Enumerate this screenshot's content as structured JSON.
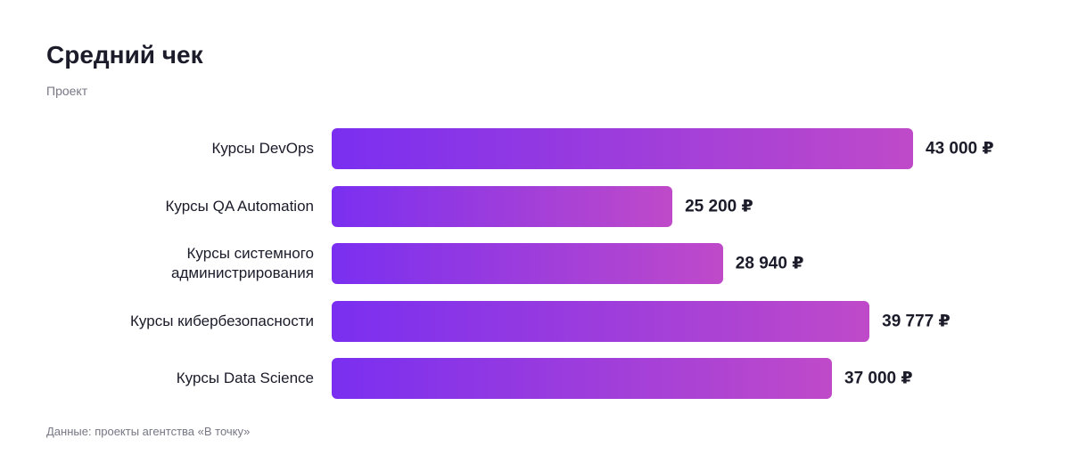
{
  "chart_data": {
    "type": "bar",
    "orientation": "horizontal",
    "title": "Средний чек",
    "subtitle": "Проект",
    "source": "Данные: проекты агентства «В точку»",
    "categories": [
      "Курсы DevOps",
      "Курсы QA Automation",
      "Курсы системного\nадминистрирования",
      "Курсы кибербезопасности",
      "Курсы Data Science"
    ],
    "values": [
      43000,
      25200,
      28940,
      39777,
      37000
    ],
    "value_labels": [
      "43 000 ₽",
      "25 200 ₽",
      "28 940 ₽",
      "39 777 ₽",
      "37 000 ₽"
    ],
    "gradient": [
      "#7a2ff0",
      "#bf4ac9"
    ]
  }
}
